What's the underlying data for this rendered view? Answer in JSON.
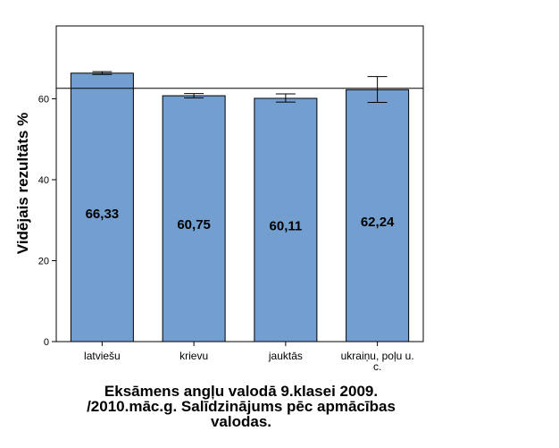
{
  "chart_data": {
    "type": "bar",
    "ylabel": "Vidējais rezultāts %",
    "categories": [
      "latviešu",
      "krievu",
      "jauktās",
      "ukraiņu, poļu u. c."
    ],
    "category_label_lines": [
      [
        "latviešu"
      ],
      [
        "krievu"
      ],
      [
        "jauktās"
      ],
      [
        "ukraiņu, poļu u.",
        "c."
      ]
    ],
    "values": [
      66.33,
      60.75,
      60.11,
      62.24
    ],
    "value_labels": [
      "66,33",
      "60,75",
      "60,11",
      "62,24"
    ],
    "error_bars": [
      [
        66.0,
        66.7
      ],
      [
        60.2,
        61.3
      ],
      [
        59.2,
        61.2
      ],
      [
        59.1,
        65.5
      ]
    ],
    "reference_line": 62.6,
    "ylim": [
      0,
      78
    ],
    "yticks": [
      0,
      20,
      40,
      60
    ],
    "grid": false,
    "bar_color": "#729fcf",
    "title_lines": [
      "Eksāmens angļu valodā 9.klasei 2009.",
      "/2010.māc.g. Salīdzinājums pēc apmācības",
      "valodas."
    ]
  }
}
